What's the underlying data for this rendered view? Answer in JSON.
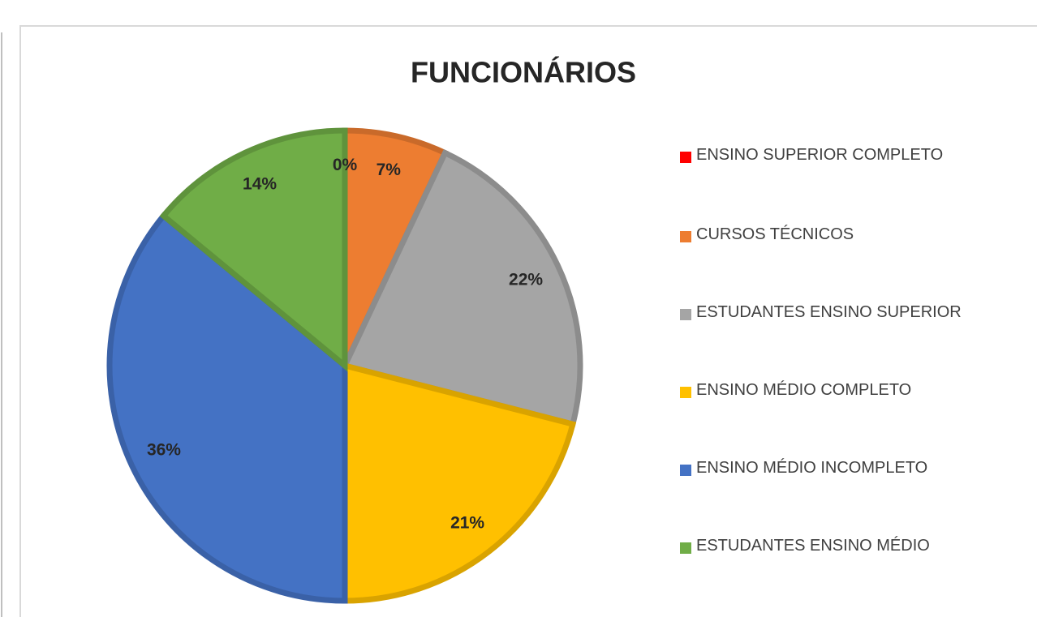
{
  "chart_data": {
    "type": "pie",
    "title": "FUNCIONÁRIOS",
    "categories": [
      "ENSINO SUPERIOR COMPLETO",
      "CURSOS TÉCNICOS",
      "ESTUDANTES ENSINO SUPERIOR",
      "ENSINO MÉDIO COMPLETO",
      "ENSINO MÉDIO INCOMPLETO",
      "ESTUDANTES ENSINO MÉDIO"
    ],
    "values": [
      0,
      7,
      22,
      21,
      36,
      14
    ],
    "value_labels": [
      "0%",
      "7%",
      "22%",
      "21%",
      "36%",
      "14%"
    ],
    "colors": [
      "#ff0000",
      "#ed7d31",
      "#a5a5a5",
      "#ffc000",
      "#4472c4",
      "#70ad47"
    ],
    "legend": "right"
  }
}
